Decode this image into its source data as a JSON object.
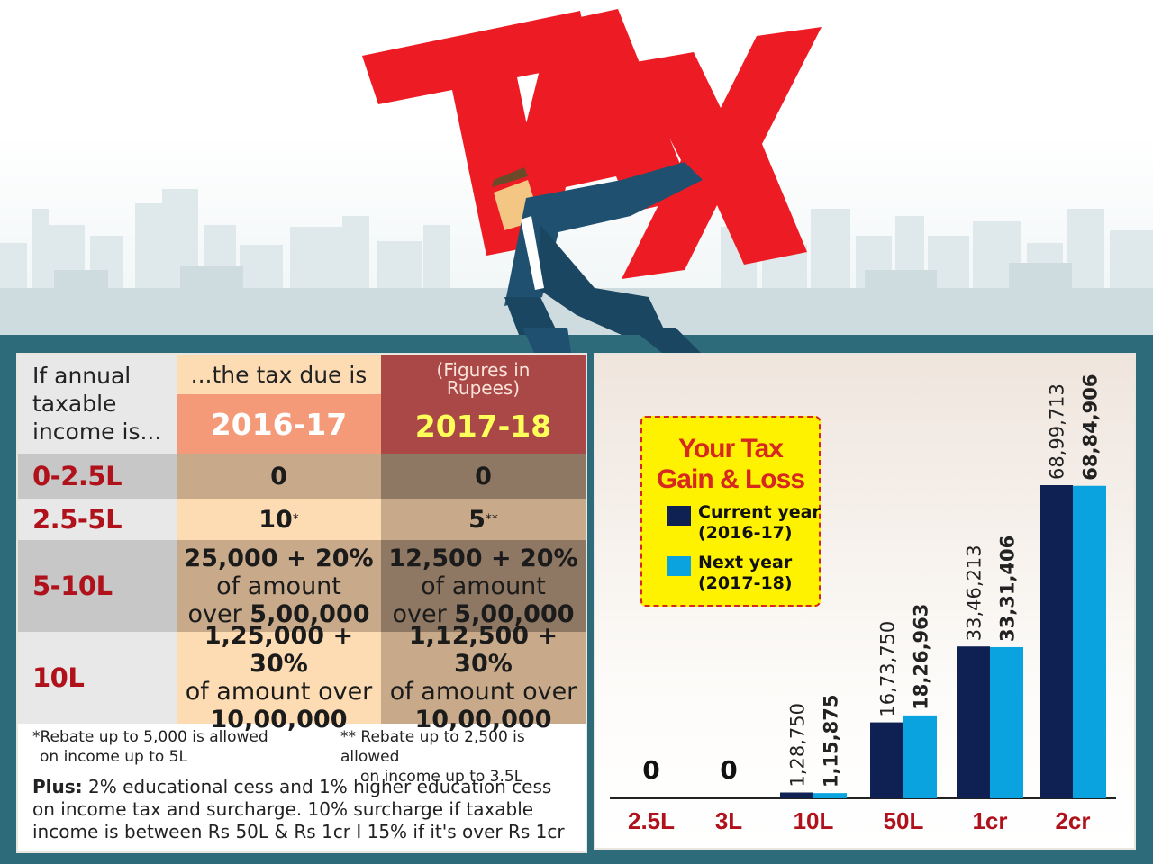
{
  "headline": "TAX",
  "table": {
    "header": {
      "income_line1": "If annual",
      "income_line2": "taxable",
      "income_line3": "income is...",
      "due": "...the tax due is",
      "figures_line1": "(Figures in",
      "figures_line2": "Rupees)",
      "year1": "2016-17",
      "year2": "2017-18"
    },
    "rows": [
      {
        "label": "0-2.5L",
        "v1": "0",
        "v2": "0"
      },
      {
        "label": "2.5-5L",
        "v1": "10",
        "v1_mark": "*",
        "v2": "5",
        "v2_mark": "**"
      },
      {
        "label": "5-10L",
        "v1_a": "25,000 + 20%",
        "v1_b": "of amount",
        "v1_c_pre": "over ",
        "v1_c": "5,00,000",
        "v2_a": "12,500 + 20%",
        "v2_b": "of amount",
        "v2_c_pre": "over ",
        "v2_c": "5,00,000"
      },
      {
        "label": "10L",
        "v1_a": "1,25,000 + 30%",
        "v1_b": "of amount over",
        "v1_c": "10,00,000",
        "v2_a": "1,12,500 + 30%",
        "v2_b": "of amount over",
        "v2_c": "10,00,000"
      }
    ],
    "note1_line1": "*Rebate up to 5,000 is allowed",
    "note1_line2": "on income up to 5L",
    "note2_line1": "** Rebate up to 2,500 is allowed",
    "note2_line2": "on income up to 3.5L",
    "plus_label": "Plus:",
    "plus_line1": " 2% educational cess and 1% higher education cess",
    "plus_line2": "on income tax and surcharge. 10% surcharge if taxable",
    "plus_line3": "income is between Rs 50L & Rs 1cr I 15% if it's over Rs 1cr"
  },
  "legend": {
    "title_line1": "Your Tax",
    "title_line2": "Gain & Loss",
    "current_label": "Current year",
    "current_years": "(2016-17)",
    "next_label": "Next year",
    "next_years": "(2017-18)"
  },
  "colors": {
    "current": "#0f2153",
    "next": "#0aa3e0",
    "label_red": "#b0121b",
    "tax_red": "#ed1c24"
  },
  "chart_data": {
    "type": "bar",
    "categories": [
      "2.5L",
      "3L",
      "10L",
      "50L",
      "1cr",
      "2cr"
    ],
    "series": [
      {
        "name": "Current year (2016-17)",
        "values": [
          0,
          0,
          128750,
          1673750,
          3346213,
          6899713
        ],
        "labels": [
          "0",
          "0",
          "1,28,750",
          "16,73,750",
          "33,46,213",
          "68,99,713"
        ]
      },
      {
        "name": "Next year (2017-18)",
        "values": [
          0,
          0,
          115875,
          1826963,
          3331406,
          6884906
        ],
        "labels": [
          "0",
          "0",
          "1,15,875",
          "18,26,963",
          "33,31,406",
          "68,84,906"
        ]
      }
    ],
    "xlabel": "",
    "ylabel": ""
  }
}
